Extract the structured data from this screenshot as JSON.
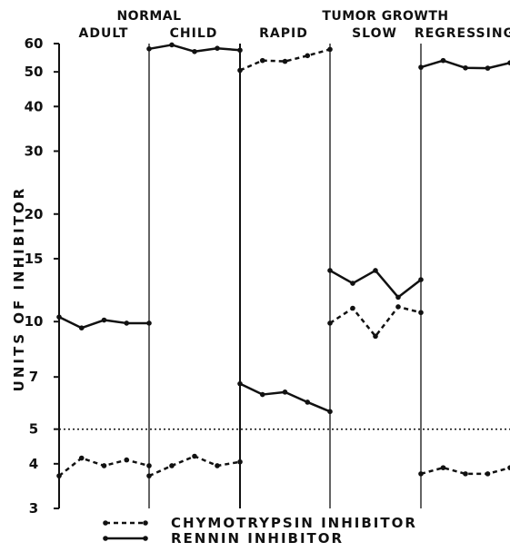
{
  "chart_data": {
    "type": "line",
    "ylabel": "UNITS OF INHIBITOR",
    "yscale": "log",
    "ylim": [
      3,
      60
    ],
    "yticks": [
      3,
      4,
      5,
      7,
      10,
      15,
      20,
      30,
      40,
      50,
      60
    ],
    "reference_line": 5,
    "groups": [
      {
        "label": "NORMAL",
        "panels": [
          "adult",
          "child"
        ]
      },
      {
        "label": "TUMOR GROWTH",
        "panels": [
          "rapid",
          "slow",
          "regressing"
        ]
      }
    ],
    "panels": [
      {
        "key": "adult",
        "label": "ADULT",
        "series": [
          {
            "name": "CHYMOTRYPSIN INHIBITOR",
            "values": [
              3.7,
              4.15,
              3.95,
              4.1,
              3.95
            ]
          },
          {
            "name": "RENNIN INHIBITOR",
            "values": [
              10.3,
              9.6,
              10.1,
              9.9,
              9.9
            ]
          }
        ]
      },
      {
        "key": "child",
        "label": "CHILD",
        "series": [
          {
            "name": "CHYMOTRYPSIN INHIBITOR",
            "values": [
              3.7,
              3.95,
              4.2,
              3.95,
              4.05
            ]
          },
          {
            "name": "RENNIN INHIBITOR",
            "values": [
              58,
              59.5,
              57,
              58.2,
              57.5
            ]
          }
        ]
      },
      {
        "key": "rapid",
        "label": "RAPID",
        "series": [
          {
            "name": "CHYMOTRYPSIN INHIBITOR",
            "values": [
              50.5,
              53.8,
              53.5,
              55.5,
              57.8
            ]
          },
          {
            "name": "RENNIN INHIBITOR",
            "values": [
              6.7,
              6.25,
              6.35,
              5.95,
              5.6
            ]
          }
        ]
      },
      {
        "key": "slow",
        "label": "SLOW",
        "series": [
          {
            "name": "CHYMOTRYPSIN INHIBITOR",
            "values": [
              9.9,
              10.9,
              9.1,
              11,
              10.6
            ]
          },
          {
            "name": "RENNIN INHIBITOR",
            "values": [
              13.9,
              12.8,
              13.9,
              11.7,
              13.1
            ]
          }
        ]
      },
      {
        "key": "regressing",
        "label": "REGRESSING",
        "series": [
          {
            "name": "CHYMOTRYPSIN INHIBITOR",
            "values": [
              3.75,
              3.9,
              3.75,
              3.75,
              3.9
            ]
          },
          {
            "name": "RENNIN INHIBITOR",
            "values": [
              51.5,
              53.8,
              51.3,
              51.2,
              53
            ]
          }
        ]
      }
    ],
    "legend": [
      {
        "name": "CHYMOTRYPSIN INHIBITOR",
        "style": "dashed"
      },
      {
        "name": "RENNIN INHIBITOR",
        "style": "solid"
      }
    ]
  }
}
